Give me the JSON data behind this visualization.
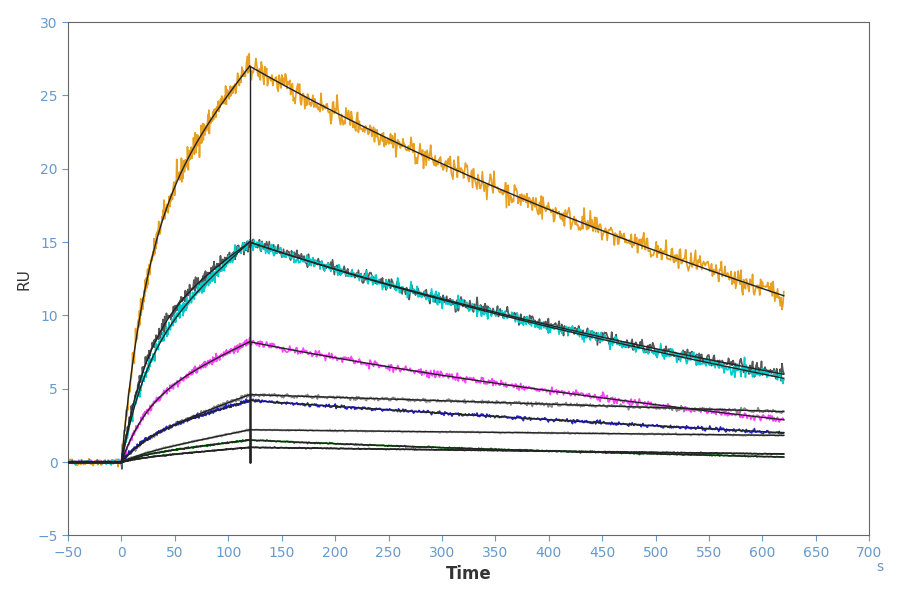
{
  "xlabel": "Time",
  "xlabel_unit": "s",
  "ylabel": "RU",
  "xlim": [
    -50,
    700
  ],
  "ylim": [
    -5,
    30
  ],
  "xticks": [
    -50,
    0,
    50,
    100,
    150,
    200,
    250,
    300,
    350,
    400,
    450,
    500,
    550,
    600,
    650,
    700
  ],
  "yticks": [
    -5,
    0,
    5,
    10,
    15,
    20,
    25,
    30
  ],
  "background_color": "#ffffff",
  "association_start": 0,
  "association_end": 120,
  "dissociation_end": 620,
  "curves": [
    {
      "color": "#E8A020",
      "peak": 27.0,
      "end_val": 8.2,
      "rise_curve": 0.6,
      "fall_curve": 0.55
    },
    {
      "color": "#555555",
      "peak": 15.0,
      "end_val": 4.3,
      "rise_curve": 0.6,
      "fall_curve": 0.55
    },
    {
      "color": "#00CCCC",
      "peak": 15.0,
      "end_val": 4.2,
      "rise_curve": 0.5,
      "fall_curve": 0.5
    },
    {
      "color": "#FF44FF",
      "peak": 8.2,
      "end_val": 2.1,
      "rise_curve": 0.5,
      "fall_curve": 0.5
    },
    {
      "color": "#888888",
      "peak": 4.6,
      "end_val": 3.3,
      "rise_curve": 0.3,
      "fall_curve": 0.15
    },
    {
      "color": "#2222CC",
      "peak": 4.2,
      "end_val": 1.6,
      "rise_curve": 0.4,
      "fall_curve": 0.4
    },
    {
      "color": "#aaaaaa",
      "peak": 2.2,
      "end_val": 1.8,
      "rise_curve": 0.2,
      "fall_curve": 0.05
    },
    {
      "color": "#006600",
      "peak": 1.5,
      "end_val": 0.25,
      "rise_curve": 0.3,
      "fall_curve": 0.45
    },
    {
      "color": "#222222",
      "peak": 1.0,
      "end_val": 0.5,
      "rise_curve": 0.25,
      "fall_curve": 0.2
    }
  ],
  "fit_curves": [
    {
      "peak": 27.0,
      "end_val": 8.2,
      "rise_curve": 0.6,
      "fall_curve": 0.55
    },
    {
      "peak": 15.0,
      "end_val": 4.3,
      "rise_curve": 0.6,
      "fall_curve": 0.55
    },
    {
      "peak": 15.0,
      "end_val": 4.2,
      "rise_curve": 0.5,
      "fall_curve": 0.5
    },
    {
      "peak": 8.2,
      "end_val": 2.1,
      "rise_curve": 0.5,
      "fall_curve": 0.5
    },
    {
      "peak": 4.6,
      "end_val": 3.3,
      "rise_curve": 0.3,
      "fall_curve": 0.15
    },
    {
      "peak": 4.2,
      "end_val": 1.6,
      "rise_curve": 0.4,
      "fall_curve": 0.4
    },
    {
      "peak": 2.2,
      "end_val": 1.8,
      "rise_curve": 0.2,
      "fall_curve": 0.05
    },
    {
      "peak": 1.5,
      "end_val": 0.25,
      "rise_curve": 0.3,
      "fall_curve": 0.45
    },
    {
      "peak": 1.0,
      "end_val": 0.5,
      "rise_curve": 0.25,
      "fall_curve": 0.2
    }
  ],
  "tick_color": "#6699CC",
  "axis_color": "#666666",
  "label_color": "#333333"
}
